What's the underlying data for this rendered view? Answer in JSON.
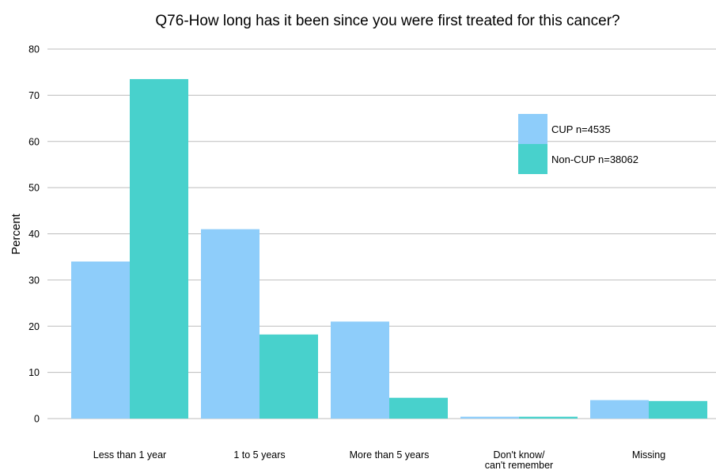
{
  "chart_data": {
    "type": "bar",
    "title": "Q76-How long has it been since you were first treated for this cancer?",
    "xlabel": "",
    "ylabel": "Percent",
    "ylim": [
      0,
      80
    ],
    "yticks": [
      0,
      10,
      20,
      30,
      40,
      50,
      60,
      70,
      80
    ],
    "grid": true,
    "legend_position": "top-right",
    "categories": [
      [
        "Less than 1 year"
      ],
      [
        "1 to 5 years"
      ],
      [
        "More than 5 years"
      ],
      [
        "Don't know/",
        "can't remember"
      ],
      [
        "Missing"
      ]
    ],
    "series": [
      {
        "name": "CUP n=4535",
        "color": "#8ecdfa",
        "values": [
          34.0,
          41.0,
          21.0,
          0.4,
          4.0
        ]
      },
      {
        "name": "Non-CUP n=38062",
        "color": "#48d1cc",
        "values": [
          73.5,
          18.2,
          4.5,
          0.4,
          3.8
        ]
      }
    ]
  }
}
